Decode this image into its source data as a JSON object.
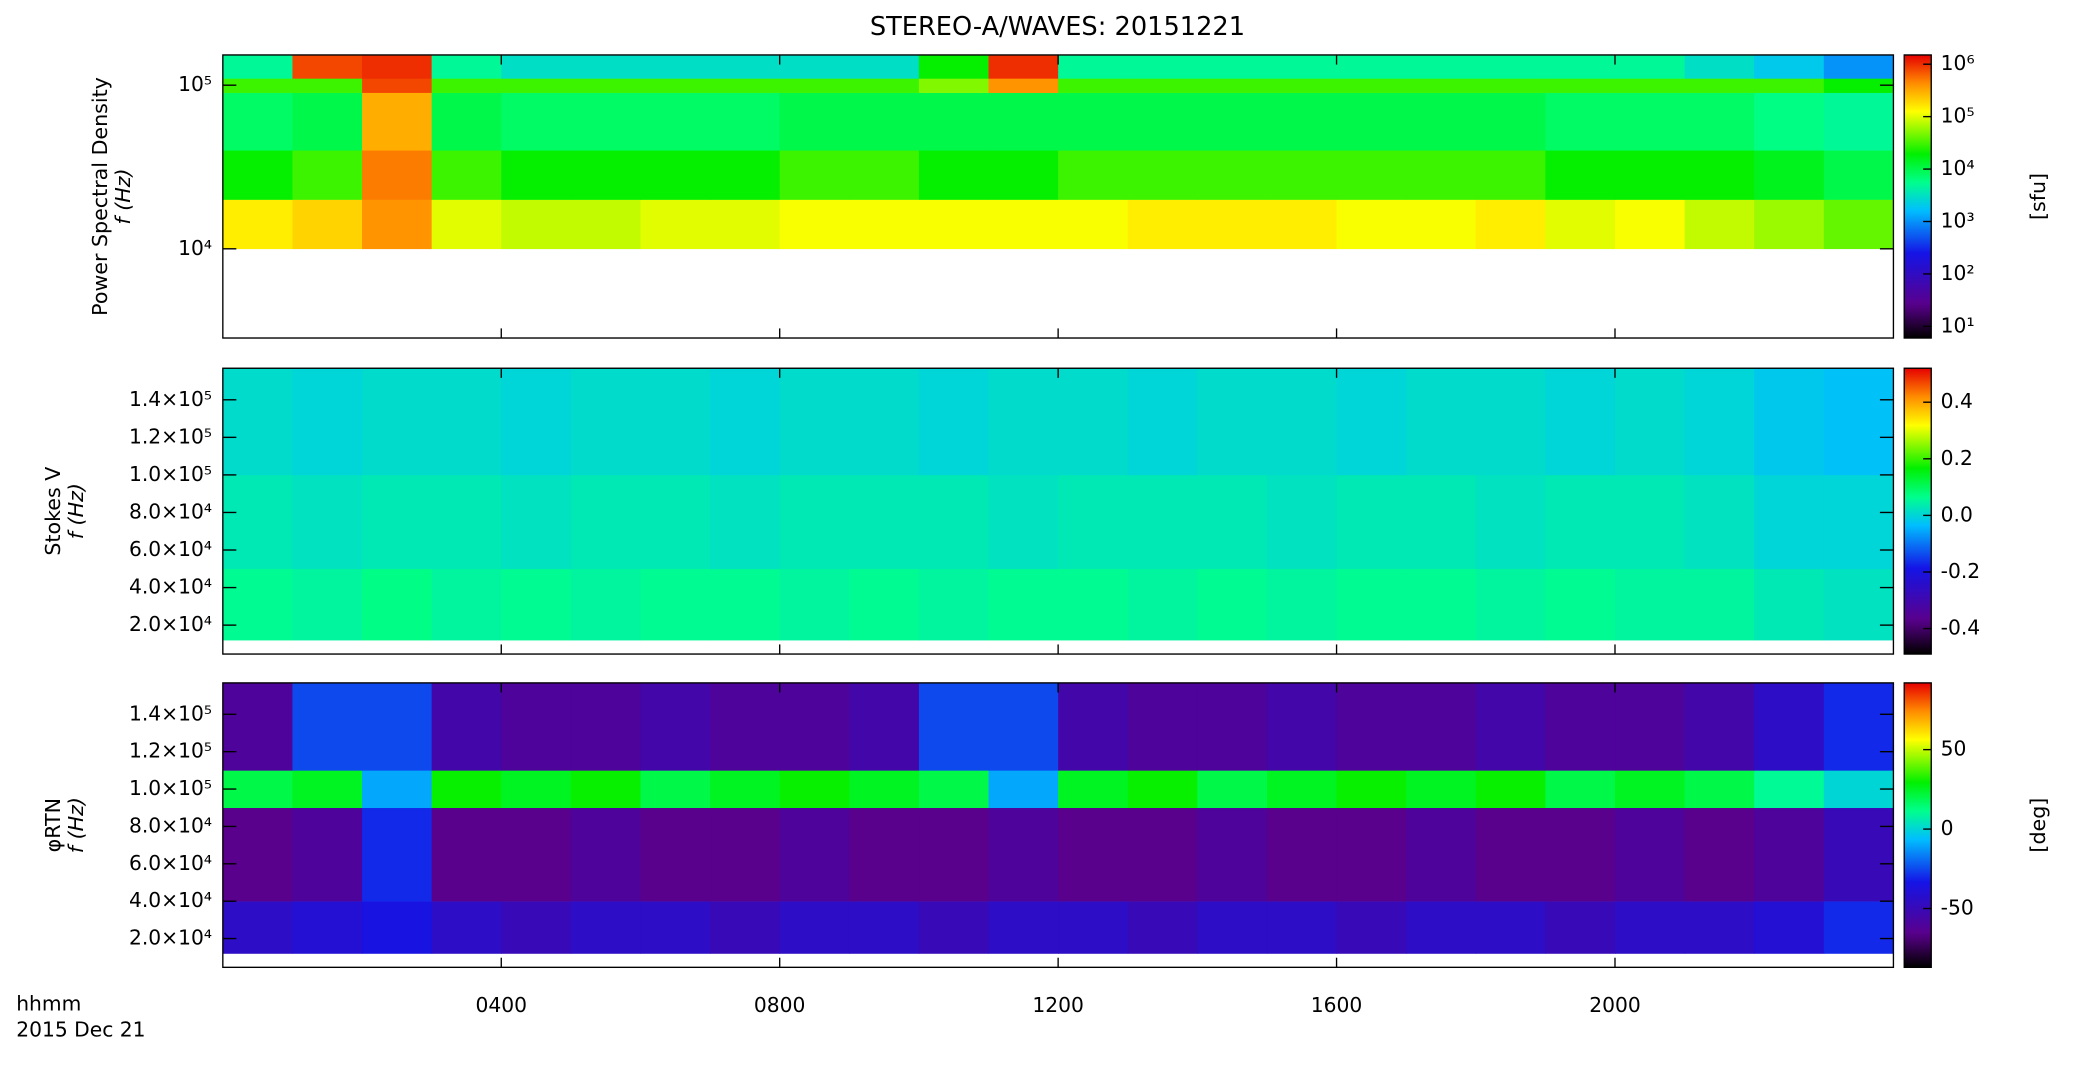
{
  "chart_data": [
    {
      "type": "spectrogram",
      "title": "STEREO-A/WAVES: 20151221",
      "ylabel": [
        "Power Spectral Density",
        "f (Hz)"
      ],
      "clabel": "[sfu]",
      "log": true,
      "clog": true,
      "colormap": "rainbow",
      "xlim": [
        0,
        24
      ],
      "xticks": [
        4,
        8,
        12,
        16,
        20
      ],
      "ylim": [
        2850,
        153000
      ],
      "yticks": [
        {
          "value": 10000,
          "label": "10⁴"
        },
        {
          "value": 100000,
          "label": "10⁵"
        }
      ],
      "clim": [
        6,
        1500000
      ],
      "cticks": [
        {
          "value": 10,
          "label": "10¹"
        },
        {
          "value": 100,
          "label": "10²"
        },
        {
          "value": 1000,
          "label": "10³"
        },
        {
          "value": 10000,
          "label": "10⁴"
        },
        {
          "value": 100000,
          "label": "10⁵"
        },
        {
          "value": 1000000,
          "label": "10⁶"
        }
      ],
      "xbins": [
        0,
        1,
        2,
        3,
        4,
        5,
        6,
        7,
        8,
        9,
        10,
        11,
        12,
        13,
        14,
        15,
        16,
        17,
        18,
        19,
        20,
        21,
        22,
        23,
        24
      ],
      "ybins": [
        10000,
        20000,
        40000,
        90000,
        110000,
        153000
      ],
      "z": [
        [
          150000,
          200000,
          400000,
          100000,
          80000,
          80000,
          100000,
          100000,
          120000,
          120000,
          120000,
          120000,
          120000,
          150000,
          150000,
          150000,
          120000,
          120000,
          150000,
          100000,
          120000,
          80000,
          60000,
          40000
        ],
        [
          20000,
          30000,
          500000,
          30000,
          20000,
          20000,
          20000,
          20000,
          30000,
          30000,
          20000,
          20000,
          30000,
          30000,
          30000,
          30000,
          30000,
          30000,
          30000,
          20000,
          20000,
          20000,
          15000,
          10000
        ],
        [
          8000,
          10000,
          300000,
          10000,
          8000,
          8000,
          8000,
          8000,
          10000,
          10000,
          10000,
          10000,
          10000,
          10000,
          10000,
          10000,
          10000,
          10000,
          10000,
          8000,
          8000,
          8000,
          6000,
          5000
        ],
        [
          30000,
          30000,
          800000,
          30000,
          30000,
          30000,
          30000,
          30000,
          30000,
          30000,
          50000,
          400000,
          30000,
          30000,
          30000,
          30000,
          30000,
          30000,
          30000,
          30000,
          30000,
          30000,
          30000,
          20000
        ],
        [
          5000,
          800000,
          1000000,
          5000,
          3000,
          3000,
          3000,
          3000,
          3000,
          3000,
          20000,
          1000000,
          5000,
          5000,
          5000,
          5000,
          5000,
          5000,
          5000,
          5000,
          5000,
          3000,
          2000,
          1000
        ]
      ]
    },
    {
      "type": "spectrogram",
      "ylabel": [
        "Stokes V",
        "f (Hz)"
      ],
      "log": false,
      "clog": false,
      "colormap": "rainbow",
      "xlim": [
        0,
        24
      ],
      "xticks": [
        4,
        8,
        12,
        16,
        20
      ],
      "ylim": [
        4600,
        156800
      ],
      "yticks": [
        {
          "value": 20000,
          "label": "2.0×10⁴"
        },
        {
          "value": 40000,
          "label": "4.0×10⁴"
        },
        {
          "value": 60000,
          "label": "6.0×10⁴"
        },
        {
          "value": 80000,
          "label": "8.0×10⁴"
        },
        {
          "value": 100000,
          "label": "1.0×10⁵"
        },
        {
          "value": 120000,
          "label": "1.2×10⁵"
        },
        {
          "value": 140000,
          "label": "1.4×10⁵"
        }
      ],
      "clim": [
        -0.49,
        0.52
      ],
      "cticks": [
        -0.4,
        -0.2,
        {
          "value": 0,
          "label": "0.0"
        },
        0.2,
        0.4
      ],
      "xbins": [
        0,
        1,
        2,
        3,
        4,
        5,
        6,
        7,
        8,
        9,
        10,
        11,
        12,
        13,
        14,
        15,
        16,
        17,
        18,
        19,
        20,
        21,
        22,
        23,
        24
      ],
      "ybins": [
        12000,
        50000,
        100000,
        156800
      ],
      "z": [
        [
          0.06,
          0.05,
          0.07,
          0.05,
          0.06,
          0.05,
          0.06,
          0.06,
          0.05,
          0.06,
          0.05,
          0.06,
          0.06,
          0.05,
          0.06,
          0.05,
          0.06,
          0.06,
          0.05,
          0.06,
          0.05,
          0.05,
          0.03,
          0.02
        ],
        [
          0.03,
          0.02,
          0.03,
          0.03,
          0.02,
          0.03,
          0.03,
          0.02,
          0.03,
          0.03,
          0.03,
          0.02,
          0.03,
          0.03,
          0.03,
          0.02,
          0.03,
          0.03,
          0.02,
          0.03,
          0.03,
          0.02,
          0.0,
          0.0
        ],
        [
          0.01,
          0.0,
          0.01,
          0.01,
          0.0,
          0.01,
          0.01,
          0.0,
          0.01,
          0.01,
          0.0,
          0.01,
          0.01,
          0.0,
          0.01,
          0.01,
          0.0,
          0.01,
          0.01,
          0.0,
          0.01,
          0.0,
          -0.02,
          -0.03
        ]
      ]
    },
    {
      "type": "spectrogram",
      "ylabel": [
        "φRTN",
        "f (Hz)"
      ],
      "clabel": "[deg]",
      "xlabel": "hhmm",
      "xsublabel": "2015 Dec 21",
      "log": false,
      "clog": false,
      "colormap": "rainbow",
      "xlim": [
        0,
        24
      ],
      "xticks": [
        {
          "value": 4,
          "label": "0400"
        },
        {
          "value": 8,
          "label": "0800"
        },
        {
          "value": 12,
          "label": "1200"
        },
        {
          "value": 16,
          "label": "1600"
        },
        {
          "value": 20,
          "label": "2000"
        }
      ],
      "ylim": [
        4600,
        156800
      ],
      "yticks": [
        {
          "value": 20000,
          "label": "2.0×10⁴"
        },
        {
          "value": 40000,
          "label": "4.0×10⁴"
        },
        {
          "value": 60000,
          "label": "6.0×10⁴"
        },
        {
          "value": 80000,
          "label": "8.0×10⁴"
        },
        {
          "value": 100000,
          "label": "1.0×10⁵"
        },
        {
          "value": 120000,
          "label": "1.2×10⁵"
        },
        {
          "value": 140000,
          "label": "1.4×10⁵"
        }
      ],
      "clim": [
        -87,
        92
      ],
      "cticks": [
        -50,
        0,
        50
      ],
      "xbins": [
        0,
        1,
        2,
        3,
        4,
        5,
        6,
        7,
        8,
        9,
        10,
        11,
        12,
        13,
        14,
        15,
        16,
        17,
        18,
        19,
        20,
        21,
        22,
        23,
        24
      ],
      "ybins": [
        12000,
        40000,
        90000,
        110000,
        156800
      ],
      "z": [
        [
          -45,
          -40,
          -35,
          -45,
          -50,
          -45,
          -45,
          -50,
          -45,
          -45,
          -50,
          -45,
          -45,
          -50,
          -45,
          -45,
          -50,
          -45,
          -45,
          -50,
          -45,
          -45,
          -40,
          -30
        ],
        [
          -65,
          -60,
          -30,
          -65,
          -65,
          -60,
          -65,
          -65,
          -60,
          -65,
          -65,
          -60,
          -65,
          -65,
          -60,
          -65,
          -65,
          -60,
          -65,
          -65,
          -60,
          -65,
          -60,
          -50
        ],
        [
          20,
          25,
          -10,
          30,
          25,
          30,
          20,
          25,
          30,
          25,
          20,
          -10,
          25,
          30,
          20,
          25,
          30,
          25,
          30,
          20,
          25,
          20,
          10,
          0
        ],
        [
          -60,
          -25,
          -25,
          -55,
          -60,
          -60,
          -55,
          -60,
          -60,
          -55,
          -25,
          -25,
          -55,
          -60,
          -60,
          -55,
          -60,
          -60,
          -55,
          -60,
          -60,
          -55,
          -45,
          -30
        ]
      ]
    }
  ]
}
